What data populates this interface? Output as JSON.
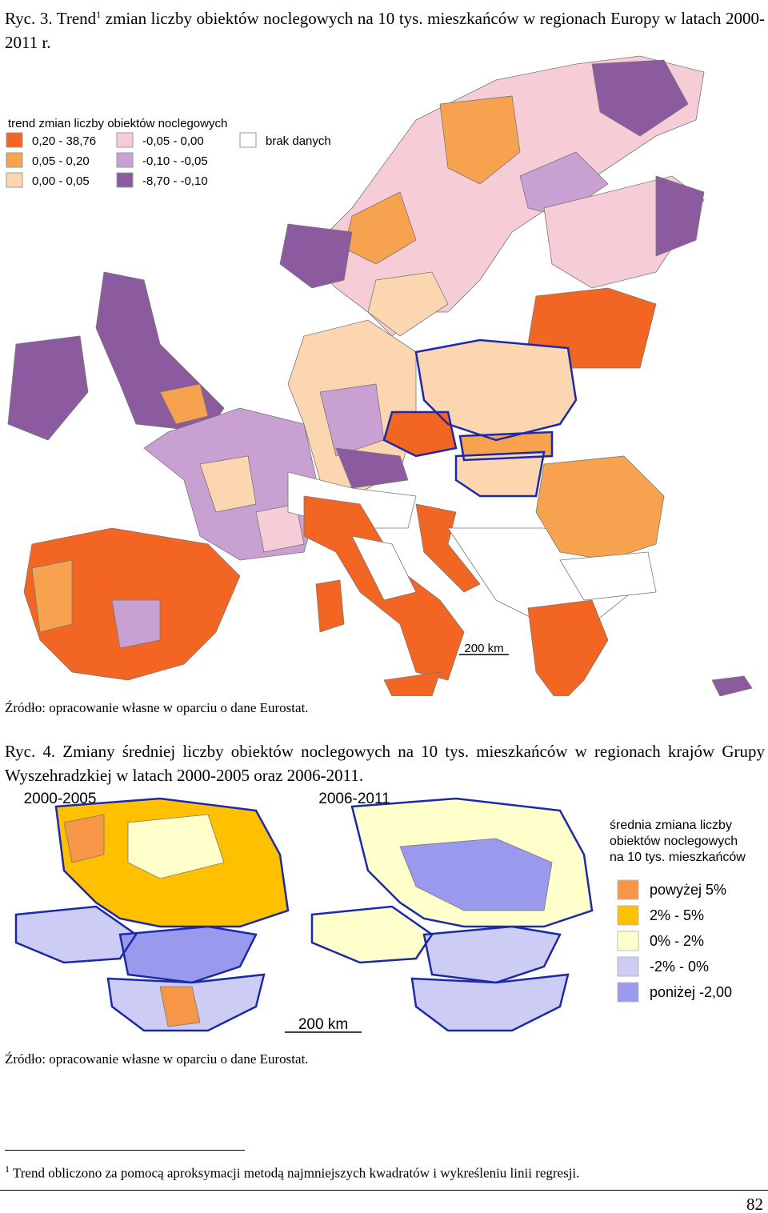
{
  "figure3": {
    "caption_start": "Ryc. 3. Trend",
    "caption_sup": "1",
    "caption_rest": " zmian liczby obiektów noclegowych na 10 tys. mieszkańców w regionach Europy w latach 2000-2011 r.",
    "legend_title": "trend zmian liczby obiektów noclegowych",
    "legend": [
      {
        "label": "0,20 - 38,76",
        "color": "#f26522"
      },
      {
        "label": "0,05 - 0,20",
        "color": "#f7a24f"
      },
      {
        "label": "0,00 - 0,05",
        "color": "#fcd6b0"
      },
      {
        "label": "-0,05 - 0,00",
        "color": "#f6cdd6"
      },
      {
        "label": "-0,10 - -0,05",
        "color": "#c8a0d2"
      },
      {
        "label": "-8,70 - -0,10",
        "color": "#8c5a9e"
      },
      {
        "label": "brak danych",
        "color": "#ffffff"
      }
    ],
    "scale": "200 km",
    "source": "Źródło: opracowanie własne w oparciu o dane Eurostat."
  },
  "figure4": {
    "caption": "Ryc. 4. Zmiany średniej liczby obiektów noclegowych na 10 tys. mieszkańców w regionach krajów Grupy Wyszehradzkiej w latach 2000-2005 oraz 2006-2011.",
    "panel_left": "2000-2005",
    "panel_right": "2006-2011",
    "legend_title": [
      "średnia zmiana liczby",
      "obiektów noclegowych",
      "na 10 tys. mieszkańców"
    ],
    "legend": [
      {
        "label": "powyżej 5%",
        "color": "#f79646"
      },
      {
        "label": "2% - 5%",
        "color": "#ffc000"
      },
      {
        "label": "0% - 2%",
        "color": "#ffffcc"
      },
      {
        "label": "-2% - 0%",
        "color": "#ccccf5"
      },
      {
        "label": "poniżej -2,00",
        "color": "#9999ee"
      }
    ],
    "scale": "200 km",
    "source": "Źródło: opracowanie własne w oparciu o dane Eurostat."
  },
  "footnote": {
    "mark": "1",
    "text": "Trend obliczono za pomocą aproksymacji metodą najmniejszych kwadratów i wykreśleniu linii regresji."
  },
  "page_number": "82"
}
